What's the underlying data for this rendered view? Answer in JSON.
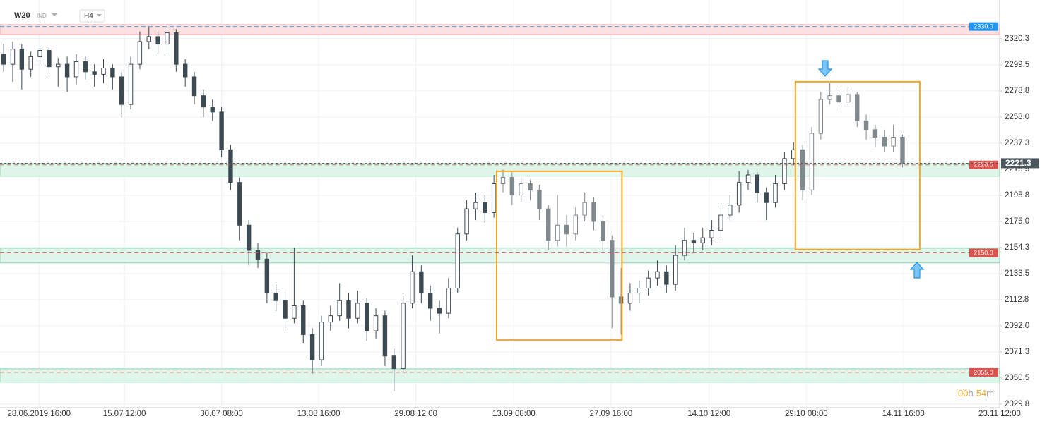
{
  "chart_data": {
    "type": "candlestick",
    "symbol": "W20",
    "symbol_tag": "IND",
    "interval": "H4",
    "timer": [
      "00",
      "h",
      "54",
      "m"
    ],
    "up_color": "#ffffff",
    "down_color": "#3d4a52",
    "edge_color": "#3d4a52",
    "grid": true,
    "xlim": [
      -0.4,
      109.7
    ],
    "ylim": [
      2026.9,
      2351.1
    ],
    "xticks": [
      {
        "value": 3.9,
        "label": "28.06.2019 16:00"
      },
      {
        "value": 13.3,
        "label": "15.07 12:00"
      },
      {
        "value": 24.0,
        "label": "30.07 08:00"
      },
      {
        "value": 34.7,
        "label": "13.08 16:00"
      },
      {
        "value": 45.4,
        "label": "29.08 12:00"
      },
      {
        "value": 56.2,
        "label": "13.09 08:00"
      },
      {
        "value": 66.9,
        "label": "27.09 16:00"
      },
      {
        "value": 77.7,
        "label": "14.10 12:00"
      },
      {
        "value": 88.4,
        "label": "29.10 08:00"
      },
      {
        "value": 99.1,
        "label": "14.11 16:00"
      },
      {
        "value": 109.7,
        "label": "23.11 12:00"
      }
    ],
    "yticks": [
      2320.3,
      2299.5,
      2278.8,
      {
        "value": 2258,
        "label": "2258.0"
      },
      2237.3,
      2216.5,
      2195.8,
      {
        "value": 2175,
        "label": "2175.0"
      },
      2154.3,
      2133.5,
      2112.8,
      {
        "value": 2092,
        "label": "2092.0"
      },
      2071.3,
      2050.5,
      2029.8
    ],
    "zones": [
      {
        "from": 2323.6,
        "to": 2331.5,
        "color": "#fde0e0",
        "border": "#f4a9a9"
      },
      {
        "from": 2211.0,
        "to": 2221.0,
        "color": "#dff5ea",
        "border": "#8fd3b0"
      },
      {
        "from": 2142.0,
        "to": 2153.7,
        "color": "#dff5ea",
        "border": "#8fd3b0"
      },
      {
        "from": 2047.2,
        "to": 2057.8,
        "color": "#dff5ea",
        "border": "#8fd3b0"
      }
    ],
    "levels": [
      {
        "value": 2330,
        "label": "2330.0",
        "color": "#2196f3"
      },
      {
        "value": 2220,
        "label": "2220.0",
        "color": "#d9534f"
      },
      {
        "value": 2150,
        "label": "2150.0",
        "color": "#d9534f"
      },
      {
        "value": 2055,
        "label": "2055.0",
        "color": "#d9534f"
      }
    ],
    "boxes": [
      {
        "x": [
          54.3,
          68.1
        ],
        "y": [
          2080.8,
          2214.9
        ],
        "color": "#f5a623"
      },
      {
        "x": [
          87.2,
          100.9
        ],
        "y": [
          2152.6,
          2286.1
        ],
        "color": "#f5a623"
      }
    ],
    "candles": [
      [
        2308,
        2316,
        2294,
        2300
      ],
      [
        2300,
        2318,
        2286,
        2312
      ],
      [
        2312,
        2316,
        2280,
        2296
      ],
      [
        2296,
        2310,
        2290,
        2306
      ],
      [
        2306,
        2315,
        2300,
        2311
      ],
      [
        2311,
        2314,
        2292,
        2298
      ],
      [
        2298,
        2305,
        2282,
        2300
      ],
      [
        2300,
        2306,
        2278,
        2290
      ],
      [
        2290,
        2308,
        2284,
        2302
      ],
      [
        2302,
        2306,
        2288,
        2294
      ],
      [
        2294,
        2300,
        2282,
        2292
      ],
      [
        2292,
        2304,
        2285,
        2297
      ],
      [
        2297,
        2300,
        2280,
        2290
      ],
      [
        2290,
        2294,
        2258,
        2268
      ],
      [
        2268,
        2306,
        2264,
        2300
      ],
      [
        2300,
        2326,
        2296,
        2318
      ],
      [
        2318,
        2330,
        2312,
        2322
      ],
      [
        2322,
        2326,
        2308,
        2316
      ],
      [
        2316,
        2330,
        2310,
        2325
      ],
      [
        2325,
        2328,
        2294,
        2300
      ],
      [
        2300,
        2304,
        2282,
        2290
      ],
      [
        2290,
        2294,
        2268,
        2275
      ],
      [
        2275,
        2280,
        2258,
        2266
      ],
      [
        2266,
        2272,
        2255,
        2262
      ],
      [
        2262,
        2266,
        2226,
        2232
      ],
      [
        2232,
        2236,
        2200,
        2206
      ],
      [
        2206,
        2210,
        2160,
        2172
      ],
      [
        2172,
        2176,
        2140,
        2152
      ],
      [
        2152,
        2158,
        2138,
        2145
      ],
      [
        2145,
        2150,
        2110,
        2118
      ],
      [
        2118,
        2125,
        2104,
        2112
      ],
      [
        2112,
        2118,
        2090,
        2098
      ],
      [
        2098,
        2154,
        2094,
        2108
      ],
      [
        2108,
        2112,
        2078,
        2085
      ],
      [
        2085,
        2090,
        2054,
        2065
      ],
      [
        2065,
        2100,
        2060,
        2095
      ],
      [
        2095,
        2108,
        2088,
        2100
      ],
      [
        2100,
        2126,
        2096,
        2112
      ],
      [
        2112,
        2118,
        2090,
        2098
      ],
      [
        2098,
        2120,
        2094,
        2110
      ],
      [
        2110,
        2114,
        2080,
        2088
      ],
      [
        2088,
        2106,
        2082,
        2100
      ],
      [
        2100,
        2104,
        2060,
        2068
      ],
      [
        2068,
        2074,
        2040,
        2058
      ],
      [
        2058,
        2116,
        2054,
        2110
      ],
      [
        2110,
        2148,
        2106,
        2135
      ],
      [
        2135,
        2140,
        2110,
        2118
      ],
      [
        2118,
        2124,
        2096,
        2106
      ],
      [
        2106,
        2112,
        2086,
        2102
      ],
      [
        2102,
        2130,
        2098,
        2122
      ],
      [
        2122,
        2170,
        2118,
        2165
      ],
      [
        2165,
        2192,
        2160,
        2185
      ],
      [
        2185,
        2198,
        2176,
        2190
      ],
      [
        2190,
        2196,
        2174,
        2182
      ],
      [
        2182,
        2212,
        2178,
        2205
      ],
      [
        2205,
        2216,
        2198,
        2210
      ],
      [
        2210,
        2214,
        2188,
        2196
      ],
      [
        2196,
        2210,
        2190,
        2205
      ],
      [
        2205,
        2208,
        2192,
        2200
      ],
      [
        2200,
        2204,
        2176,
        2185
      ],
      [
        2185,
        2188,
        2152,
        2160
      ],
      [
        2160,
        2196,
        2155,
        2172
      ],
      [
        2172,
        2180,
        2155,
        2165
      ],
      [
        2165,
        2186,
        2160,
        2180
      ],
      [
        2180,
        2198,
        2175,
        2190
      ],
      [
        2190,
        2194,
        2168,
        2175
      ],
      [
        2175,
        2180,
        2150,
        2160
      ],
      [
        2160,
        2164,
        2090,
        2115
      ],
      [
        2115,
        2138,
        2085,
        2110
      ],
      [
        2110,
        2126,
        2104,
        2118
      ],
      [
        2118,
        2128,
        2110,
        2122
      ],
      [
        2122,
        2136,
        2116,
        2130
      ],
      [
        2130,
        2144,
        2124,
        2135
      ],
      [
        2135,
        2140,
        2118,
        2125
      ],
      [
        2125,
        2156,
        2120,
        2148
      ],
      [
        2148,
        2170,
        2144,
        2160
      ],
      [
        2160,
        2166,
        2150,
        2158
      ],
      [
        2158,
        2170,
        2152,
        2162
      ],
      [
        2162,
        2176,
        2156,
        2168
      ],
      [
        2168,
        2186,
        2162,
        2180
      ],
      [
        2180,
        2196,
        2176,
        2188
      ],
      [
        2188,
        2215,
        2182,
        2206
      ],
      [
        2206,
        2216,
        2200,
        2212
      ],
      [
        2212,
        2214,
        2190,
        2198
      ],
      [
        2198,
        2202,
        2176,
        2190
      ],
      [
        2190,
        2212,
        2186,
        2205
      ],
      [
        2205,
        2230,
        2200,
        2225
      ],
      [
        2225,
        2238,
        2220,
        2232
      ],
      [
        2232,
        2236,
        2192,
        2200
      ],
      [
        2200,
        2250,
        2196,
        2245
      ],
      [
        2245,
        2278,
        2240,
        2272
      ],
      [
        2272,
        2285,
        2268,
        2275
      ],
      [
        2275,
        2280,
        2264,
        2270
      ],
      [
        2270,
        2282,
        2266,
        2276
      ],
      [
        2276,
        2278,
        2250,
        2255
      ],
      [
        2255,
        2260,
        2240,
        2248
      ],
      [
        2248,
        2252,
        2234,
        2242
      ],
      [
        2242,
        2248,
        2230,
        2235
      ],
      [
        2235,
        2252,
        2230,
        2242
      ],
      [
        2242,
        2244,
        2218,
        2221.3
      ]
    ]
  }
}
